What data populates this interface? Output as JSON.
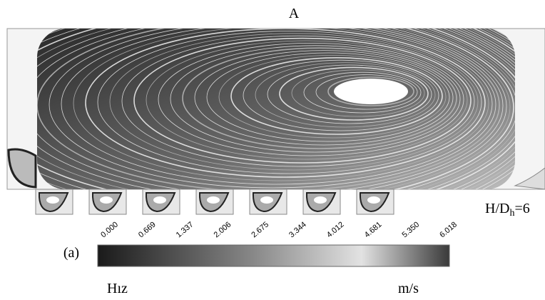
{
  "figure": {
    "title": "A",
    "panel_label": "(a)",
    "ratio_label": {
      "base": "H/D",
      "sub": "h",
      "rest": "=6"
    },
    "colorbar": {
      "ticks": [
        "0.000",
        "0.669",
        "1.337",
        "2.006",
        "2.675",
        "3.344",
        "4.012",
        "4.681",
        "5.350",
        "6.018"
      ],
      "quantity": "Hız",
      "unit": "m/s"
    }
  }
}
